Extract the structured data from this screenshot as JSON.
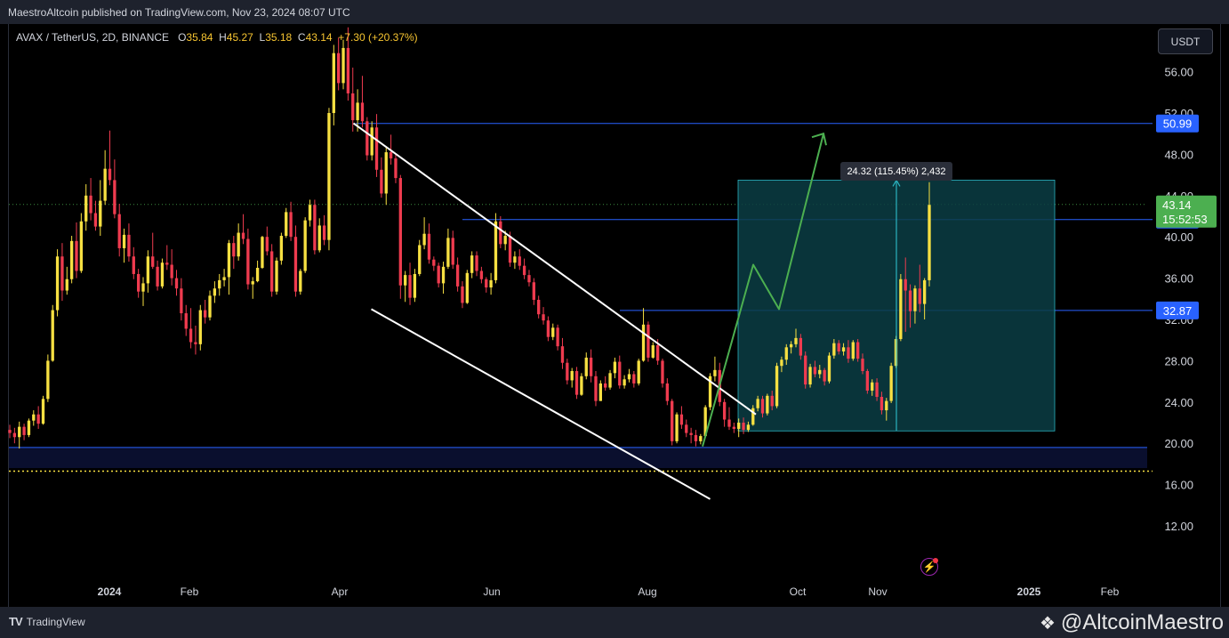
{
  "header": {
    "published_text": "MaestroAltcoin published on TradingView.com, Nov 23, 2024 08:07 UTC"
  },
  "symbol": {
    "name": "AVAX / TetherUS, 2D, BINANCE",
    "open_label": "O",
    "open": "35.84",
    "high_label": "H",
    "high": "45.27",
    "low_label": "L",
    "low": "35.18",
    "close_label": "C",
    "close": "43.14",
    "change": "+7.30 (+20.37%)"
  },
  "currency_button": "USDT",
  "colors": {
    "up_candle": "#f7e042",
    "down_candle": "#ef3b4f",
    "hline": "#2962ff",
    "channel": "#ffffff",
    "arrow": "#4caf50",
    "range_box": "#0a3d44",
    "badge_blue": "#2962ff",
    "badge_green": "#4caf50"
  },
  "chart_data": {
    "type": "candlestick",
    "symbol": "AVAX / TetherUS",
    "interval": "2D",
    "exchange": "BINANCE",
    "y_axis": {
      "range": [
        9.5,
        59.5
      ],
      "ticks": [
        "12.00",
        "16.00",
        "20.00",
        "24.00",
        "28.00",
        "32.00",
        "36.00",
        "40.00",
        "44.00",
        "48.00",
        "52.00",
        "56.00"
      ]
    },
    "x_axis": {
      "ticks": [
        "2024",
        "Feb",
        "Apr",
        "Jun",
        "Aug",
        "Oct",
        "Nov",
        "2025",
        "Feb"
      ]
    },
    "last_price": "43.14",
    "countdown": "15:52:53",
    "price_levels": [
      "50.99",
      "41.68",
      "32.87"
    ],
    "support_zone": [
      17.6,
      19.6
    ],
    "dotted_level": 17.3,
    "measure": {
      "label": "24.32 (115.45%) 2,432",
      "from": 21.2,
      "to": 45.5
    },
    "channel": {
      "upper": [
        [
          "Apr 2024",
          51.0
        ],
        [
          "Sep 2024",
          22.8
        ]
      ],
      "lower": [
        [
          "Apr 2024",
          33.0
        ],
        [
          "Aug 2024",
          14.6
        ]
      ]
    },
    "projection_path": [
      [
        "Aug 2024",
        19.7
      ],
      [
        "Sep 2024",
        37.3
      ],
      [
        "Sep 2024",
        33.0
      ],
      [
        "Oct 2024",
        50.0
      ]
    ],
    "candles_ohlc": [
      [
        21.3,
        21.8,
        20.5,
        21.0
      ],
      [
        21.0,
        21.5,
        20.0,
        20.6
      ],
      [
        20.6,
        22.1,
        19.5,
        21.6
      ],
      [
        21.6,
        21.9,
        20.3,
        20.8
      ],
      [
        20.8,
        22.4,
        20.6,
        22.2
      ],
      [
        22.2,
        23.2,
        21.7,
        22.8
      ],
      [
        22.8,
        23.6,
        21.4,
        21.9
      ],
      [
        21.9,
        24.6,
        21.8,
        24.3
      ],
      [
        24.3,
        28.6,
        24.0,
        28.0
      ],
      [
        28.0,
        33.4,
        27.9,
        32.9
      ],
      [
        32.9,
        38.8,
        32.3,
        38.1
      ],
      [
        38.1,
        39.4,
        33.8,
        34.8
      ],
      [
        34.8,
        37.1,
        34.4,
        35.9
      ],
      [
        35.9,
        40.1,
        35.5,
        39.6
      ],
      [
        39.6,
        41.4,
        36.0,
        36.7
      ],
      [
        36.7,
        42.3,
        36.5,
        41.5
      ],
      [
        41.5,
        45.1,
        40.6,
        44.0
      ],
      [
        44.0,
        45.7,
        41.6,
        42.3
      ],
      [
        42.3,
        43.5,
        40.6,
        41.0
      ],
      [
        41.0,
        45.5,
        40.1,
        43.5
      ],
      [
        43.5,
        48.4,
        43.1,
        46.6
      ],
      [
        46.6,
        50.3,
        45.0,
        45.5
      ],
      [
        45.5,
        47.5,
        41.8,
        42.2
      ],
      [
        42.2,
        43.2,
        38.1,
        38.9
      ],
      [
        38.9,
        40.8,
        37.5,
        40.2
      ],
      [
        40.2,
        41.3,
        37.6,
        38.1
      ],
      [
        38.1,
        39.0,
        35.9,
        36.4
      ],
      [
        36.4,
        36.9,
        34.1,
        34.7
      ],
      [
        34.7,
        36.1,
        33.3,
        35.5
      ],
      [
        35.5,
        38.7,
        34.6,
        38.1
      ],
      [
        38.1,
        40.4,
        36.9,
        37.1
      ],
      [
        37.1,
        37.7,
        34.8,
        35.2
      ],
      [
        35.2,
        37.9,
        35.0,
        37.5
      ],
      [
        37.5,
        39.2,
        36.8,
        37.3
      ],
      [
        37.3,
        38.8,
        35.3,
        36.0
      ],
      [
        36.0,
        36.8,
        34.3,
        35.0
      ],
      [
        35.0,
        36.0,
        31.9,
        32.6
      ],
      [
        32.6,
        33.4,
        30.4,
        31.1
      ],
      [
        31.1,
        33.1,
        29.2,
        29.8
      ],
      [
        29.8,
        31.4,
        28.6,
        29.6
      ],
      [
        29.6,
        33.4,
        29.0,
        32.9
      ],
      [
        32.9,
        33.9,
        31.6,
        32.2
      ],
      [
        32.2,
        34.8,
        31.9,
        34.3
      ],
      [
        34.3,
        35.7,
        33.6,
        35.0
      ],
      [
        35.0,
        36.4,
        34.3,
        35.8
      ],
      [
        35.8,
        36.9,
        35.2,
        36.1
      ],
      [
        36.1,
        39.7,
        34.4,
        39.4
      ],
      [
        39.4,
        40.1,
        36.9,
        38.1
      ],
      [
        38.1,
        41.3,
        37.7,
        40.4
      ],
      [
        40.4,
        42.2,
        39.3,
        39.8
      ],
      [
        39.8,
        40.8,
        34.9,
        35.4
      ],
      [
        35.4,
        36.1,
        34.0,
        35.7
      ],
      [
        35.7,
        37.7,
        35.6,
        37.0
      ],
      [
        37.0,
        40.1,
        36.9,
        40.0
      ],
      [
        40.0,
        41.0,
        38.2,
        38.6
      ],
      [
        38.6,
        39.3,
        34.2,
        34.7
      ],
      [
        34.7,
        38.0,
        34.4,
        37.7
      ],
      [
        37.7,
        40.4,
        37.3,
        40.1
      ],
      [
        40.1,
        42.8,
        39.9,
        42.4
      ],
      [
        42.4,
        43.4,
        39.6,
        40.0
      ],
      [
        40.0,
        41.1,
        34.2,
        34.7
      ],
      [
        34.7,
        36.9,
        34.4,
        36.7
      ],
      [
        36.7,
        41.9,
        36.5,
        41.6
      ],
      [
        41.6,
        43.6,
        41.0,
        43.1
      ],
      [
        43.1,
        43.6,
        38.3,
        38.7
      ],
      [
        38.7,
        41.8,
        38.5,
        41.1
      ],
      [
        41.1,
        42.1,
        39.2,
        39.7
      ],
      [
        39.7,
        52.5,
        38.7,
        52.0
      ],
      [
        52.0,
        58.6,
        50.8,
        57.8
      ],
      [
        57.8,
        59.3,
        54.2,
        54.9
      ],
      [
        54.9,
        59.1,
        54.3,
        58.3
      ],
      [
        58.3,
        60.3,
        53.2,
        53.9
      ],
      [
        53.9,
        56.4,
        50.2,
        51.3
      ],
      [
        51.3,
        54.3,
        50.2,
        53.0
      ],
      [
        53.0,
        55.6,
        50.6,
        51.2
      ],
      [
        51.2,
        51.6,
        47.4,
        47.9
      ],
      [
        47.9,
        51.2,
        47.4,
        50.6
      ],
      [
        50.6,
        51.9,
        45.8,
        46.5
      ],
      [
        46.5,
        47.7,
        43.8,
        44.2
      ],
      [
        44.2,
        48.7,
        43.1,
        48.2
      ],
      [
        48.2,
        49.9,
        47.0,
        47.6
      ],
      [
        47.6,
        48.1,
        45.2,
        45.7
      ],
      [
        45.7,
        46.0,
        34.0,
        35.3
      ],
      [
        35.3,
        36.7,
        33.7,
        36.3
      ],
      [
        36.3,
        37.5,
        33.4,
        34.1
      ],
      [
        34.1,
        36.9,
        33.7,
        36.4
      ],
      [
        36.4,
        39.7,
        36.2,
        39.2
      ],
      [
        39.2,
        41.9,
        38.8,
        40.3
      ],
      [
        40.3,
        41.3,
        37.4,
        37.8
      ],
      [
        37.8,
        38.1,
        36.7,
        37.2
      ],
      [
        37.2,
        37.5,
        35.1,
        35.5
      ],
      [
        35.5,
        37.6,
        34.5,
        37.1
      ],
      [
        37.1,
        40.8,
        36.9,
        39.9
      ],
      [
        39.9,
        40.6,
        36.9,
        37.3
      ],
      [
        37.3,
        38.0,
        34.7,
        35.2
      ],
      [
        35.2,
        35.7,
        33.1,
        33.6
      ],
      [
        33.6,
        36.8,
        33.5,
        36.5
      ],
      [
        36.5,
        38.6,
        36.0,
        38.2
      ],
      [
        38.2,
        38.6,
        36.2,
        36.7
      ],
      [
        36.7,
        37.1,
        35.5,
        35.9
      ],
      [
        35.9,
        36.1,
        34.6,
        35.1
      ],
      [
        35.1,
        36.5,
        34.4,
        35.8
      ],
      [
        35.8,
        42.3,
        35.5,
        41.5
      ],
      [
        41.5,
        42.0,
        38.9,
        39.3
      ],
      [
        39.3,
        40.6,
        38.7,
        40.1
      ],
      [
        40.1,
        40.5,
        37.1,
        37.5
      ],
      [
        37.5,
        38.6,
        36.9,
        38.1
      ],
      [
        38.1,
        38.8,
        36.8,
        37.2
      ],
      [
        37.2,
        37.9,
        35.9,
        36.3
      ],
      [
        36.3,
        36.8,
        35.2,
        35.6
      ],
      [
        35.6,
        36.0,
        33.4,
        33.9
      ],
      [
        33.9,
        34.3,
        32.1,
        32.5
      ],
      [
        32.5,
        33.2,
        31.5,
        31.9
      ],
      [
        31.9,
        32.3,
        29.9,
        30.3
      ],
      [
        30.3,
        31.6,
        30.0,
        31.2
      ],
      [
        31.2,
        31.5,
        29.0,
        29.4
      ],
      [
        29.4,
        30.2,
        27.2,
        27.8
      ],
      [
        27.8,
        28.2,
        25.7,
        26.1
      ],
      [
        26.1,
        27.3,
        25.4,
        27.0
      ],
      [
        27.0,
        27.4,
        24.3,
        24.7
      ],
      [
        24.7,
        26.8,
        24.6,
        26.5
      ],
      [
        26.5,
        28.8,
        26.2,
        28.3
      ],
      [
        28.3,
        29.1,
        25.9,
        26.5
      ],
      [
        26.5,
        27.0,
        23.6,
        24.1
      ],
      [
        24.1,
        26.1,
        24.1,
        25.8
      ],
      [
        25.8,
        26.5,
        25.1,
        25.4
      ],
      [
        25.4,
        27.1,
        25.2,
        26.8
      ],
      [
        26.8,
        28.3,
        26.3,
        27.9
      ],
      [
        27.9,
        28.5,
        25.3,
        25.6
      ],
      [
        25.6,
        26.6,
        25.3,
        26.2
      ],
      [
        26.2,
        27.2,
        25.9,
        26.7
      ],
      [
        26.7,
        27.0,
        25.4,
        25.8
      ],
      [
        25.8,
        28.2,
        25.6,
        28.0
      ],
      [
        28.0,
        33.1,
        27.9,
        31.5
      ],
      [
        31.5,
        31.8,
        27.9,
        28.3
      ],
      [
        28.3,
        29.8,
        28.2,
        29.5
      ],
      [
        29.5,
        30.1,
        27.6,
        28.0
      ],
      [
        28.0,
        28.2,
        25.4,
        25.8
      ],
      [
        25.8,
        26.3,
        23.7,
        24.1
      ],
      [
        24.1,
        24.3,
        19.8,
        20.2
      ],
      [
        20.2,
        23.0,
        20.0,
        22.8
      ],
      [
        22.8,
        23.6,
        21.4,
        21.8
      ],
      [
        21.8,
        22.3,
        20.6,
        21.0
      ],
      [
        21.0,
        21.5,
        20.0,
        20.8
      ],
      [
        20.8,
        21.3,
        19.7,
        20.2
      ],
      [
        20.2,
        20.9,
        19.9,
        20.7
      ],
      [
        20.7,
        23.7,
        20.6,
        23.5
      ],
      [
        23.5,
        26.8,
        23.2,
        26.5
      ],
      [
        26.5,
        28.4,
        26.0,
        27.1
      ],
      [
        27.1,
        27.8,
        23.6,
        24.0
      ],
      [
        24.0,
        24.3,
        21.6,
        22.3
      ],
      [
        22.3,
        23.5,
        21.3,
        21.6
      ],
      [
        21.6,
        22.0,
        21.0,
        21.4
      ],
      [
        21.4,
        22.4,
        20.6,
        22.0
      ],
      [
        22.0,
        22.5,
        20.9,
        21.3
      ],
      [
        21.3,
        22.1,
        21.1,
        21.8
      ],
      [
        21.8,
        23.7,
        21.7,
        23.4
      ],
      [
        23.4,
        24.6,
        23.1,
        24.3
      ],
      [
        24.3,
        24.6,
        22.5,
        22.9
      ],
      [
        22.9,
        24.8,
        22.7,
        24.6
      ],
      [
        24.6,
        25.1,
        23.2,
        23.6
      ],
      [
        23.6,
        27.8,
        23.4,
        27.5
      ],
      [
        27.5,
        28.4,
        26.9,
        28.1
      ],
      [
        28.1,
        29.6,
        27.6,
        29.3
      ],
      [
        29.3,
        29.9,
        28.7,
        29.6
      ],
      [
        29.6,
        31.1,
        29.3,
        30.2
      ],
      [
        30.2,
        30.6,
        28.1,
        28.5
      ],
      [
        28.5,
        28.9,
        25.3,
        25.7
      ],
      [
        25.7,
        27.7,
        25.4,
        27.4
      ],
      [
        27.4,
        28.0,
        26.4,
        26.7
      ],
      [
        26.7,
        27.6,
        26.3,
        27.1
      ],
      [
        27.1,
        27.3,
        25.6,
        26.0
      ],
      [
        26.0,
        28.8,
        25.8,
        28.5
      ],
      [
        28.5,
        30.1,
        28.2,
        29.7
      ],
      [
        29.7,
        30.0,
        28.6,
        28.9
      ],
      [
        28.9,
        29.7,
        28.5,
        29.3
      ],
      [
        29.3,
        30.0,
        27.8,
        28.2
      ],
      [
        28.2,
        30.0,
        28.0,
        29.8
      ],
      [
        29.8,
        30.1,
        27.9,
        28.2
      ],
      [
        28.2,
        28.7,
        26.7,
        27.0
      ],
      [
        27.0,
        27.2,
        24.8,
        25.1
      ],
      [
        25.1,
        26.2,
        24.6,
        25.9
      ],
      [
        25.9,
        26.3,
        24.1,
        24.5
      ],
      [
        24.5,
        25.0,
        22.8,
        23.2
      ],
      [
        23.2,
        24.4,
        22.2,
        24.1
      ],
      [
        24.1,
        27.8,
        23.9,
        27.5
      ],
      [
        27.5,
        30.4,
        27.3,
        30.1
      ],
      [
        30.1,
        36.4,
        29.9,
        35.9
      ],
      [
        35.9,
        38.0,
        30.8,
        34.8
      ],
      [
        34.8,
        35.4,
        31.2,
        32.8
      ],
      [
        32.8,
        35.3,
        31.6,
        35.0
      ],
      [
        35.0,
        37.3,
        32.7,
        33.5
      ],
      [
        33.5,
        36.0,
        32.0,
        35.8
      ],
      [
        35.8,
        45.3,
        35.2,
        43.1
      ]
    ]
  },
  "footer": {
    "logo_text": "TradingView",
    "logo_mark": "TV",
    "handle": "@AltcoinMaestro",
    "handle_icon": "binance-diamond-icon",
    "alert_icon": "lightning-icon"
  }
}
